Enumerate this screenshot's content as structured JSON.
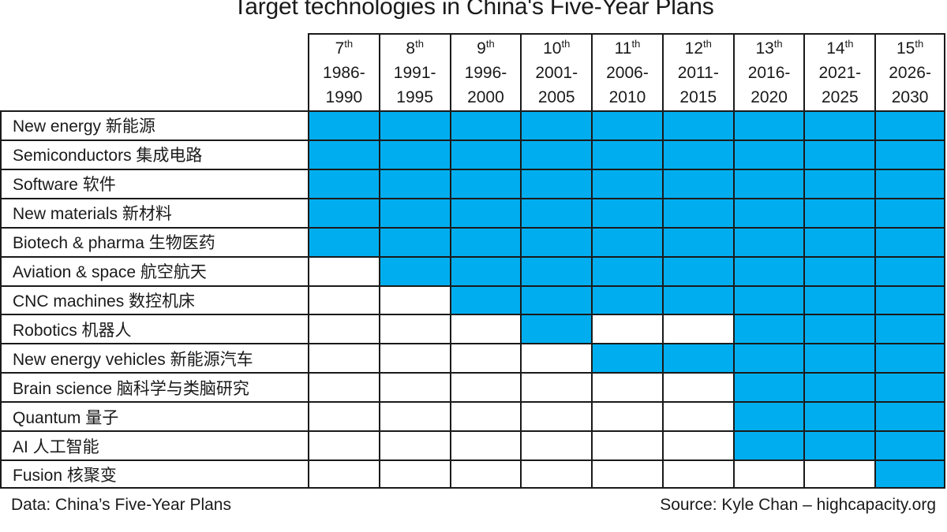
{
  "chart_data": {
    "type": "heatmap",
    "title": "Target technologies in China's Five-Year Plans",
    "legend_position": "none",
    "grid": "on",
    "columns": [
      {
        "ordinal": "7",
        "suffix": "th",
        "years_start": "1986-",
        "years_end": "1990"
      },
      {
        "ordinal": "8",
        "suffix": "th",
        "years_start": "1991-",
        "years_end": "1995"
      },
      {
        "ordinal": "9",
        "suffix": "th",
        "years_start": "1996-",
        "years_end": "2000"
      },
      {
        "ordinal": "10",
        "suffix": "th",
        "years_start": "2001-",
        "years_end": "2005"
      },
      {
        "ordinal": "11",
        "suffix": "th",
        "years_start": "2006-",
        "years_end": "2010"
      },
      {
        "ordinal": "12",
        "suffix": "th",
        "years_start": "2011-",
        "years_end": "2015"
      },
      {
        "ordinal": "13",
        "suffix": "th",
        "years_start": "2016-",
        "years_end": "2020"
      },
      {
        "ordinal": "14",
        "suffix": "th",
        "years_start": "2021-",
        "years_end": "2025"
      },
      {
        "ordinal": "15",
        "suffix": "th",
        "years_start": "2026-",
        "years_end": "2030"
      }
    ],
    "rows": [
      {
        "label": "New energy 新能源",
        "filled": [
          1,
          1,
          1,
          1,
          1,
          1,
          1,
          1,
          1
        ]
      },
      {
        "label": "Semiconductors 集成电路",
        "filled": [
          1,
          1,
          1,
          1,
          1,
          1,
          1,
          1,
          1
        ]
      },
      {
        "label": "Software 软件",
        "filled": [
          1,
          1,
          1,
          1,
          1,
          1,
          1,
          1,
          1
        ]
      },
      {
        "label": "New materials 新材料",
        "filled": [
          1,
          1,
          1,
          1,
          1,
          1,
          1,
          1,
          1
        ]
      },
      {
        "label": "Biotech & pharma 生物医药",
        "filled": [
          1,
          1,
          1,
          1,
          1,
          1,
          1,
          1,
          1
        ]
      },
      {
        "label": "Aviation & space 航空航天",
        "filled": [
          0,
          1,
          1,
          1,
          1,
          1,
          1,
          1,
          1
        ]
      },
      {
        "label": "CNC machines 数控机床",
        "filled": [
          0,
          0,
          1,
          1,
          1,
          1,
          1,
          1,
          1
        ]
      },
      {
        "label": "Robotics 机器人",
        "filled": [
          0,
          0,
          0,
          1,
          0,
          0,
          1,
          1,
          1
        ]
      },
      {
        "label": "New energy vehicles 新能源汽车",
        "filled": [
          0,
          0,
          0,
          0,
          1,
          1,
          1,
          1,
          1
        ]
      },
      {
        "label": "Brain science 脑科学与类脑研究",
        "filled": [
          0,
          0,
          0,
          0,
          0,
          0,
          1,
          1,
          1
        ]
      },
      {
        "label": "Quantum 量子",
        "filled": [
          0,
          0,
          0,
          0,
          0,
          0,
          1,
          1,
          1
        ]
      },
      {
        "label": "AI 人工智能",
        "filled": [
          0,
          0,
          0,
          0,
          0,
          0,
          1,
          1,
          1
        ]
      },
      {
        "label": "Fusion 核聚变",
        "filled": [
          0,
          0,
          0,
          0,
          0,
          0,
          0,
          0,
          1
        ]
      }
    ],
    "colors": {
      "filled": "#00AEEF",
      "empty": "#FFFFFF",
      "grid_line": "#1A1A1A",
      "text": "#1A1A1A",
      "background": "#FFFFFF"
    }
  },
  "footer": {
    "data_note": "Data: China’s Five-Year Plans",
    "source_note": "Source: Kyle Chan – highcapacity.org"
  }
}
